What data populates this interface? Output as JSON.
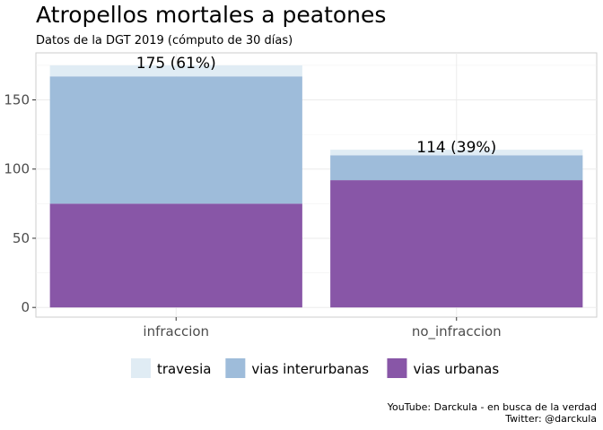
{
  "chart_data": {
    "type": "bar",
    "stacked": true,
    "title": "Atropellos mortales a peatones",
    "subtitle": "Datos de la DGT 2019 (cómputo de 30 días)",
    "xlabel": "",
    "ylabel": "",
    "categories": [
      "infraccion",
      "no_infraccion"
    ],
    "series": [
      {
        "name": "vias urbanas",
        "color": "#8856a7",
        "values": [
          75,
          92
        ]
      },
      {
        "name": "vias interurbanas",
        "color": "#9ebcda",
        "values": [
          92,
          18
        ]
      },
      {
        "name": "travesia",
        "color": "#e0ecf4",
        "values": [
          8,
          4
        ]
      }
    ],
    "bar_labels": [
      "175 (61%)",
      "114 (39%)"
    ],
    "yticks": [
      0,
      50,
      100,
      150
    ],
    "ylim": [
      -7,
      184
    ],
    "grid": true,
    "legend_position": "bottom",
    "legend_order": [
      "travesia",
      "vias interurbanas",
      "vias urbanas"
    ],
    "caption": [
      "YouTube: Darckula - en busca de la verdad",
      "Twitter: @darckula"
    ]
  }
}
